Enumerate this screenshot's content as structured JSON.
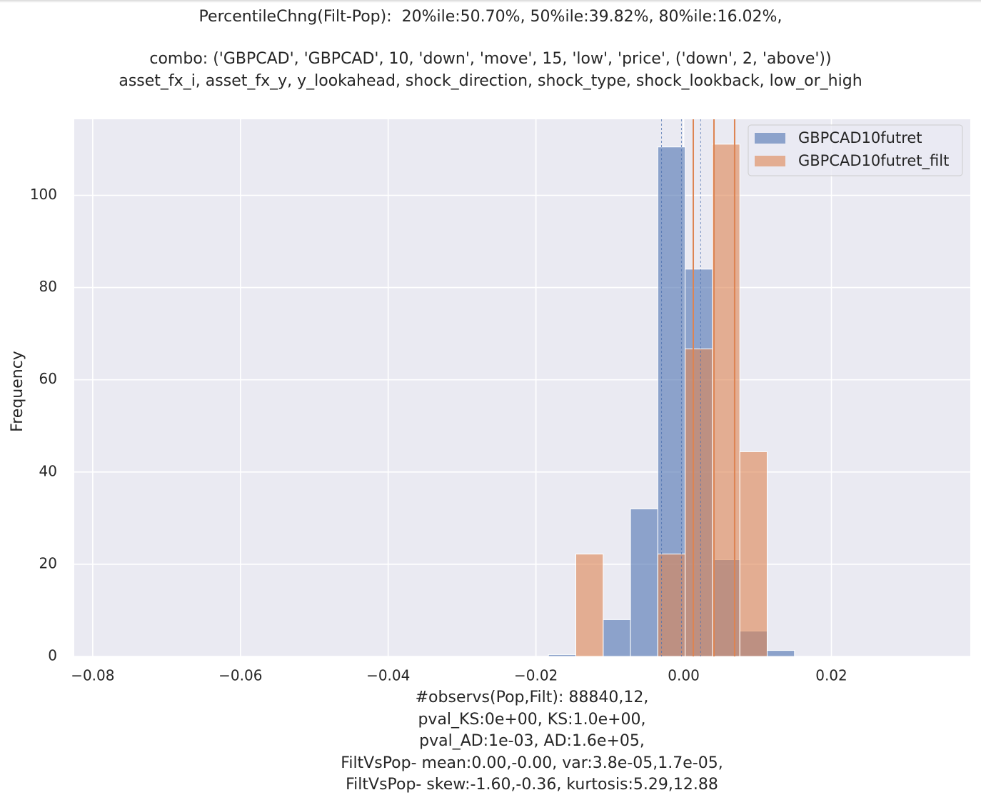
{
  "title_lines": [
    "PercentileChng(Filt-Pop):  20%ile:50.70%, 50%ile:39.82%, 80%ile:16.02%,",
    "combo: ('GBPCAD', 'GBPCAD', 10, 'down', 'move', 15, 'low', 'price', ('down', 2, 'above'))",
    "asset_fx_i, asset_fx_y, y_lookahead, shock_direction, shock_type, shock_lookback, low_or_high"
  ],
  "xlabel_lines": [
    "#observs(Pop,Filt): 88840,12,",
    "pval_KS:0e+00, KS:1.0e+00,",
    "pval_AD:1e-03, AD:1.6e+05,",
    "FiltVsPop- mean:0.00,-0.00, var:3.8e-05,1.7e-05,",
    "FiltVsPop- skew:-1.60,-0.36, kurtosis:5.29,12.88"
  ],
  "chart_data": {
    "type": "histogram",
    "ylabel": "Frequency",
    "xlim": [
      -0.0825,
      0.0388
    ],
    "ylim": [
      0,
      116.5
    ],
    "xticks": [
      -0.08,
      -0.06,
      -0.04,
      -0.02,
      0.0,
      0.02
    ],
    "xtick_labels": [
      "−0.08",
      "−0.06",
      "−0.04",
      "−0.02",
      "0.00",
      "0.02"
    ],
    "yticks": [
      0,
      20,
      40,
      60,
      80,
      100
    ],
    "ytick_labels": [
      "0",
      "20",
      "40",
      "60",
      "80",
      "100"
    ],
    "legend_position": "top-right",
    "series": [
      {
        "name": "GBPCAD10futret",
        "color": "#4c72b0",
        "bins": [
          {
            "x0": -0.0183,
            "x1": -0.0146,
            "value": 0.4
          },
          {
            "x0": -0.0146,
            "x1": -0.0109,
            "value": 0.1
          },
          {
            "x0": -0.0109,
            "x1": -0.0072,
            "value": 8
          },
          {
            "x0": -0.0072,
            "x1": -0.0035,
            "value": 32
          },
          {
            "x0": -0.0035,
            "x1": 0.0002,
            "value": 110.5
          },
          {
            "x0": 0.0002,
            "x1": 0.0039,
            "value": 84
          },
          {
            "x0": 0.0039,
            "x1": 0.0076,
            "value": 21
          },
          {
            "x0": 0.0076,
            "x1": 0.0113,
            "value": 5.5
          },
          {
            "x0": 0.0113,
            "x1": 0.015,
            "value": 1.3
          }
        ],
        "vlines": [
          -0.003,
          -0.0003,
          0.0023
        ]
      },
      {
        "name": "GBPCAD10futret_filt",
        "color": "#dd8452",
        "bins": [
          {
            "x0": -0.0146,
            "x1": -0.0109,
            "value": 22.2
          },
          {
            "x0": -0.0109,
            "x1": -0.0072,
            "value": 0
          },
          {
            "x0": -0.0072,
            "x1": -0.0035,
            "value": 0
          },
          {
            "x0": -0.0035,
            "x1": 0.0002,
            "value": 22.2
          },
          {
            "x0": 0.0002,
            "x1": 0.0039,
            "value": 66.7
          },
          {
            "x0": 0.0039,
            "x1": 0.0076,
            "value": 111.1
          },
          {
            "x0": 0.0076,
            "x1": 0.0113,
            "value": 44.4
          }
        ],
        "vlines": [
          0.0013,
          0.0041,
          0.0069
        ]
      }
    ]
  }
}
